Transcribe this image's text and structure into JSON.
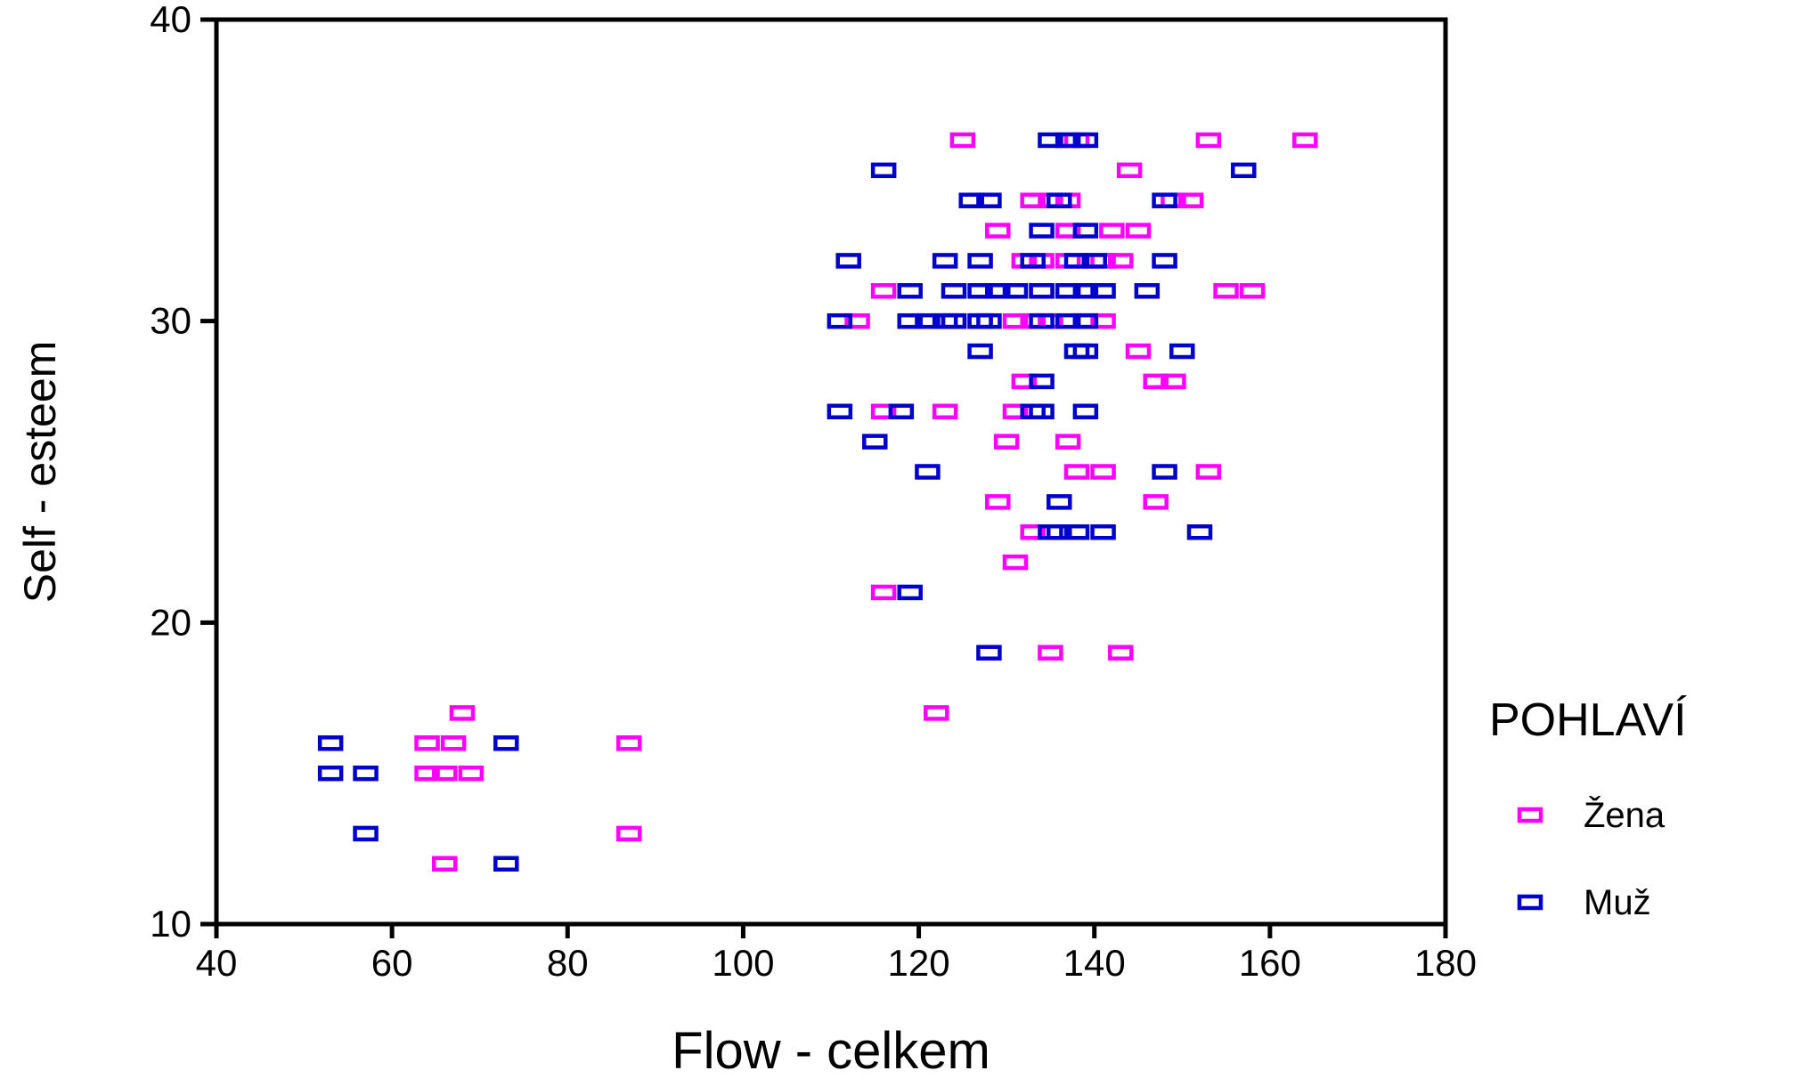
{
  "chart_data": {
    "type": "scatter",
    "xlabel": "Flow - celkem",
    "ylabel": "Self - esteem",
    "xlim": [
      40,
      180
    ],
    "ylim": [
      10,
      40
    ],
    "xticks": [
      40,
      60,
      80,
      100,
      120,
      140,
      160,
      180
    ],
    "yticks": [
      10,
      20,
      30,
      40
    ],
    "grid": false,
    "legend": {
      "title": "POHLAVÍ",
      "placement": "right"
    },
    "series": [
      {
        "name": "Žena",
        "color": "#ff00ff",
        "points": [
          [
            125,
            36
          ],
          [
            138,
            36
          ],
          [
            153,
            36
          ],
          [
            164,
            36
          ],
          [
            144,
            35
          ],
          [
            133,
            34
          ],
          [
            135,
            34
          ],
          [
            137,
            34
          ],
          [
            149,
            34
          ],
          [
            151,
            34
          ],
          [
            129,
            33
          ],
          [
            137,
            33
          ],
          [
            142,
            33
          ],
          [
            145,
            33
          ],
          [
            132,
            32
          ],
          [
            134,
            32
          ],
          [
            137,
            32
          ],
          [
            141,
            32
          ],
          [
            143,
            32
          ],
          [
            116,
            31
          ],
          [
            134,
            31
          ],
          [
            155,
            31
          ],
          [
            158,
            31
          ],
          [
            113,
            30
          ],
          [
            124,
            30
          ],
          [
            127,
            30
          ],
          [
            131,
            30
          ],
          [
            133,
            30
          ],
          [
            135,
            30
          ],
          [
            139,
            30
          ],
          [
            141,
            30
          ],
          [
            145,
            29
          ],
          [
            132,
            28
          ],
          [
            147,
            28
          ],
          [
            149,
            28
          ],
          [
            116,
            27
          ],
          [
            123,
            27
          ],
          [
            131,
            27
          ],
          [
            130,
            26
          ],
          [
            137,
            26
          ],
          [
            138,
            25
          ],
          [
            141,
            25
          ],
          [
            153,
            25
          ],
          [
            129,
            24
          ],
          [
            147,
            24
          ],
          [
            133,
            23
          ],
          [
            131,
            22
          ],
          [
            116,
            21
          ],
          [
            135,
            19
          ],
          [
            143,
            19
          ],
          [
            122,
            17
          ],
          [
            68,
            17
          ],
          [
            64,
            16
          ],
          [
            67,
            16
          ],
          [
            87,
            16
          ],
          [
            64,
            15
          ],
          [
            66,
            15
          ],
          [
            69,
            15
          ],
          [
            87,
            13
          ],
          [
            66,
            12
          ]
        ]
      },
      {
        "name": "Muž",
        "color": "#0000cc",
        "points": [
          [
            135,
            36
          ],
          [
            137,
            36
          ],
          [
            139,
            36
          ],
          [
            116,
            35
          ],
          [
            157,
            35
          ],
          [
            126,
            34
          ],
          [
            128,
            34
          ],
          [
            136,
            34
          ],
          [
            148,
            34
          ],
          [
            134,
            33
          ],
          [
            139,
            33
          ],
          [
            112,
            32
          ],
          [
            123,
            32
          ],
          [
            127,
            32
          ],
          [
            133,
            32
          ],
          [
            138,
            32
          ],
          [
            140,
            32
          ],
          [
            148,
            32
          ],
          [
            119,
            31
          ],
          [
            124,
            31
          ],
          [
            127,
            31
          ],
          [
            129,
            31
          ],
          [
            131,
            31
          ],
          [
            134,
            31
          ],
          [
            137,
            31
          ],
          [
            139,
            31
          ],
          [
            141,
            31
          ],
          [
            146,
            31
          ],
          [
            111,
            30
          ],
          [
            119,
            30
          ],
          [
            121,
            30
          ],
          [
            123,
            30
          ],
          [
            124,
            30
          ],
          [
            127,
            30
          ],
          [
            128,
            30
          ],
          [
            134,
            30
          ],
          [
            137,
            30
          ],
          [
            139,
            30
          ],
          [
            127,
            29
          ],
          [
            138,
            29
          ],
          [
            139,
            29
          ],
          [
            150,
            29
          ],
          [
            134,
            28
          ],
          [
            111,
            27
          ],
          [
            118,
            27
          ],
          [
            133,
            27
          ],
          [
            134,
            27
          ],
          [
            139,
            27
          ],
          [
            115,
            26
          ],
          [
            121,
            25
          ],
          [
            148,
            25
          ],
          [
            136,
            24
          ],
          [
            135,
            23
          ],
          [
            136,
            23
          ],
          [
            138,
            23
          ],
          [
            141,
            23
          ],
          [
            152,
            23
          ],
          [
            119,
            21
          ],
          [
            128,
            19
          ],
          [
            53,
            16
          ],
          [
            73,
            16
          ],
          [
            53,
            15
          ],
          [
            57,
            15
          ],
          [
            57,
            13
          ],
          [
            73,
            12
          ]
        ]
      }
    ]
  }
}
